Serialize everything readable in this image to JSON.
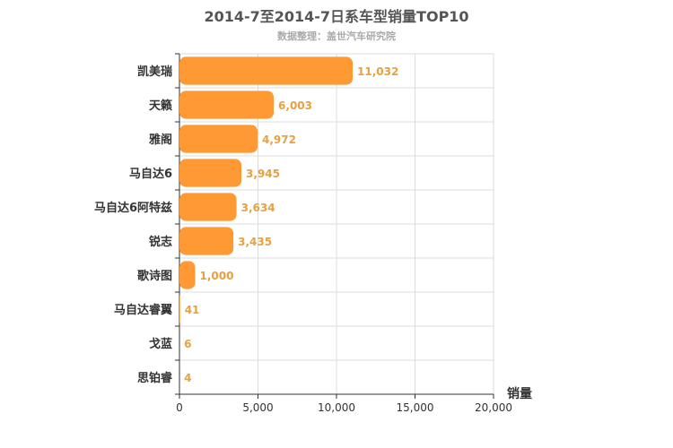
{
  "chart_data": {
    "type": "bar",
    "orientation": "horizontal",
    "title": "2014-7至2014-7日系车型销量TOP10",
    "subtitle": "数据整理：盖世汽车研究院",
    "xlabel": "销量",
    "ylabel": "",
    "xlim": [
      0,
      20000
    ],
    "x_ticks": [
      "0",
      "5,000",
      "10,000",
      "15,000",
      "20,000"
    ],
    "x_tick_values": [
      0,
      5000,
      10000,
      15000,
      20000
    ],
    "categories": [
      "凯美瑞",
      "天籁",
      "雅阁",
      "马自达6",
      "马自达6阿特兹",
      "锐志",
      "歌诗图",
      "马自达睿翼",
      "戈蓝",
      "思铂睿"
    ],
    "values": [
      11032,
      6003,
      4972,
      3945,
      3634,
      3435,
      1000,
      41,
      6,
      4
    ],
    "value_labels": [
      "11,032",
      "6,003",
      "4,972",
      "3,945",
      "3,634",
      "3,435",
      "1,000",
      "41",
      "6",
      "4"
    ],
    "bar_color": "#ff9933",
    "label_color": "#e8a040",
    "grid": true,
    "legend": "none"
  }
}
